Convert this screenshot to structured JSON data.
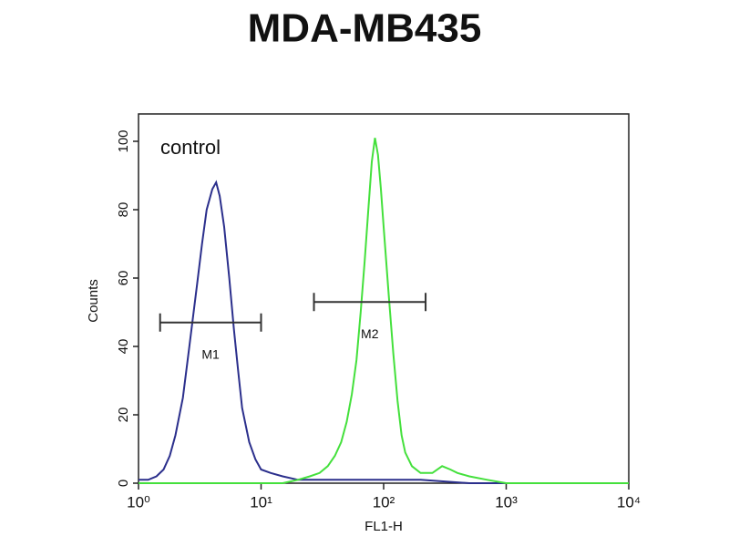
{
  "chart_data": {
    "type": "line",
    "title": "MDA-MB435",
    "annotation": "control",
    "x_label": "FL1-H",
    "y_label": "Counts",
    "xscale": "log",
    "xlim": [
      1,
      10000
    ],
    "xticks": [
      {
        "value": 1,
        "label": "10⁰"
      },
      {
        "value": 10,
        "label": "10¹"
      },
      {
        "value": 100,
        "label": "10²"
      },
      {
        "value": 1000,
        "label": "10³"
      },
      {
        "value": 10000,
        "label": "10⁴"
      }
    ],
    "ylim": [
      0,
      108
    ],
    "yticks": [
      0,
      20,
      40,
      60,
      80,
      100
    ],
    "series": [
      {
        "color": "#2b2f8c",
        "x": [
          1,
          1.2,
          1.4,
          1.6,
          1.8,
          2,
          2.3,
          2.6,
          3,
          3.3,
          3.6,
          4,
          4.3,
          4.6,
          5,
          5.5,
          6,
          6.5,
          7,
          8,
          9,
          10,
          12,
          15,
          20,
          30,
          50,
          100,
          200,
          500,
          1000,
          10000
        ],
        "values": [
          1,
          1,
          2,
          4,
          8,
          14,
          25,
          40,
          58,
          70,
          80,
          86,
          88,
          84,
          75,
          60,
          45,
          33,
          22,
          12,
          7,
          4,
          3,
          2,
          1,
          1,
          1,
          1,
          1,
          0,
          0,
          0
        ]
      },
      {
        "color": "#44e03c",
        "x": [
          1,
          10,
          15,
          20,
          25,
          30,
          35,
          40,
          45,
          50,
          55,
          60,
          65,
          70,
          75,
          80,
          85,
          90,
          95,
          100,
          110,
          120,
          130,
          140,
          150,
          170,
          200,
          250,
          300,
          350,
          400,
          500,
          700,
          1000,
          10000
        ],
        "values": [
          0,
          0,
          0,
          1,
          2,
          3,
          5,
          8,
          12,
          18,
          26,
          36,
          50,
          65,
          80,
          94,
          101,
          96,
          86,
          75,
          55,
          38,
          24,
          14,
          9,
          5,
          3,
          3,
          5,
          4,
          3,
          2,
          1,
          0,
          0
        ]
      }
    ],
    "markers": [
      {
        "label": "M1",
        "range": [
          1.5,
          10
        ],
        "y": 47
      },
      {
        "label": "M2",
        "range": [
          27,
          220
        ],
        "y": 53
      }
    ]
  }
}
